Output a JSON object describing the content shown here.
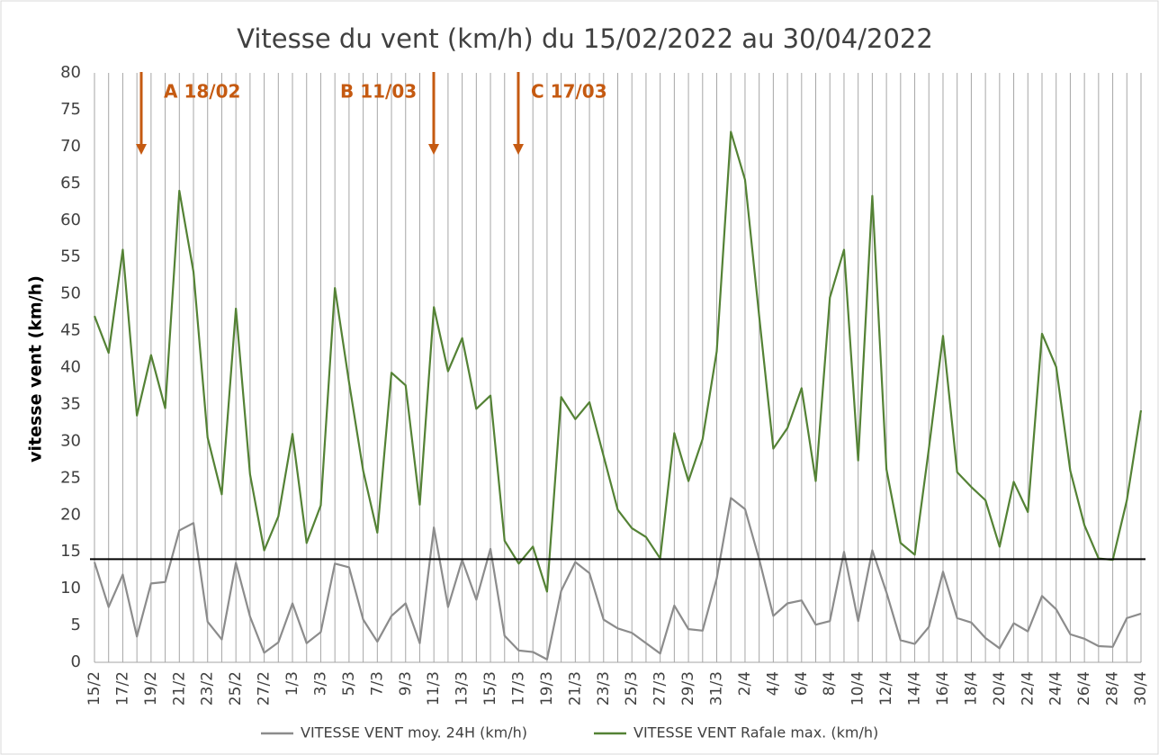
{
  "chart_data": {
    "type": "line",
    "title": "Vitesse du vent (km/h) du 15/02/2022 au 30/04/2022",
    "y_label": "vitesse vent (km/h)",
    "categories": [
      "15/2",
      null,
      "17/2",
      null,
      "19/2",
      null,
      "21/2",
      null,
      "23/2",
      null,
      "25/2",
      null,
      "27/2",
      null,
      "1/3",
      null,
      "3/3",
      null,
      "5/3",
      null,
      "7/3",
      null,
      "9/3",
      null,
      "11/3",
      null,
      "13/3",
      null,
      "15/3",
      null,
      "17/3",
      null,
      "19/3",
      null,
      "21/3",
      null,
      "23/3",
      null,
      "25/3",
      null,
      "27/3",
      null,
      "29/3",
      null,
      "31/3",
      null,
      "2/4",
      null,
      "4/4",
      null,
      "6/4",
      null,
      "8/4",
      null,
      "10/4",
      null,
      "12/4",
      null,
      "14/4",
      null,
      "16/4",
      null,
      "18/4",
      null,
      "20/4",
      null,
      "22/4",
      null,
      "24/4",
      null,
      "26/4",
      null,
      "28/4",
      null,
      "30/4"
    ],
    "series": [
      {
        "name": "VITESSE VENT moy. 24H (km/h)",
        "color": "#8c8c8c",
        "values": [
          13.6,
          7.5,
          11.9,
          3.5,
          10.7,
          10.9,
          17.9,
          18.9,
          5.5,
          3.1,
          13.5,
          6.2,
          1.3,
          2.7,
          8,
          2.6,
          4.1,
          13.4,
          12.9,
          5.8,
          2.8,
          6.3,
          8,
          2.6,
          18.3,
          7.5,
          13.9,
          8.5,
          15.4,
          3.6,
          1.6,
          1.4,
          0.4,
          9.7,
          13.6,
          12.1,
          5.8,
          4.6,
          4,
          2.6,
          1.2,
          7.7,
          4.5,
          4.3,
          11.4,
          22.3,
          20.8,
          14,
          6.3,
          8,
          8.4,
          5.1,
          5.6,
          15,
          5.6,
          15.2,
          9.5,
          3,
          2.5,
          4.8,
          12.3,
          6,
          5.4,
          3.3,
          1.9,
          5.3,
          4.2,
          9,
          7.2,
          3.8,
          3.2,
          2.2,
          2.1,
          6,
          6.6
        ]
      },
      {
        "name": "VITESSE VENT Rafale max. (km/h)",
        "color": "#548235",
        "values": [
          47,
          42,
          56,
          33.5,
          41.7,
          34.5,
          64,
          53,
          30.5,
          22.8,
          48,
          25.5,
          15.2,
          19.8,
          31,
          16.2,
          21.3,
          50.8,
          38,
          26,
          17.6,
          39.3,
          37.6,
          21.4,
          48.2,
          39.5,
          44,
          34.4,
          36.2,
          16.5,
          13.4,
          15.7,
          9.6,
          36,
          33,
          35.3,
          28,
          20.7,
          18.2,
          17,
          14.1,
          31.1,
          24.6,
          30.3,
          42.2,
          72,
          65.5,
          47,
          29,
          31.8,
          37.2,
          24.6,
          49.5,
          56,
          27.4,
          63.3,
          26.2,
          16.2,
          14.6,
          29,
          44.3,
          25.8,
          23.8,
          22,
          15.7,
          24.5,
          20.4,
          44.6,
          40.1,
          26,
          18.6,
          14.1,
          13.9,
          22,
          34.2
        ]
      }
    ],
    "reference_line": 14,
    "annotations": [
      "A 18/02",
      "B 11/03",
      "C 17/03"
    ],
    "annotation_color": "#c55a11",
    "ylim": [
      0,
      80
    ],
    "yticks": [
      0,
      5,
      10,
      15,
      20,
      25,
      30,
      35,
      40,
      45,
      50,
      55,
      60,
      65,
      70,
      75,
      80
    ],
    "grid": "x"
  }
}
